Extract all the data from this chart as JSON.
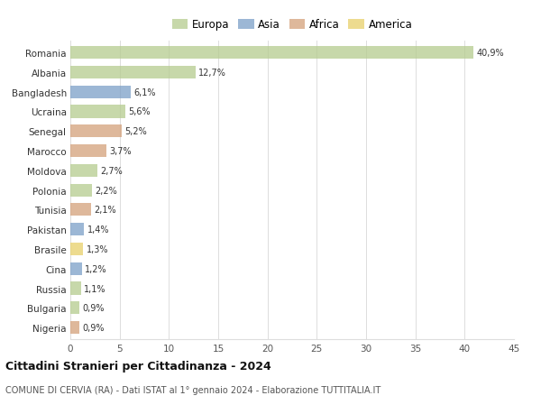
{
  "countries": [
    "Romania",
    "Albania",
    "Bangladesh",
    "Ucraina",
    "Senegal",
    "Marocco",
    "Moldova",
    "Polonia",
    "Tunisia",
    "Pakistan",
    "Brasile",
    "Cina",
    "Russia",
    "Bulgaria",
    "Nigeria"
  ],
  "values": [
    40.9,
    12.7,
    6.1,
    5.6,
    5.2,
    3.7,
    2.7,
    2.2,
    2.1,
    1.4,
    1.3,
    1.2,
    1.1,
    0.9,
    0.9
  ],
  "labels": [
    "40,9%",
    "12,7%",
    "6,1%",
    "5,6%",
    "5,2%",
    "3,7%",
    "2,7%",
    "2,2%",
    "2,1%",
    "1,4%",
    "1,3%",
    "1,2%",
    "1,1%",
    "0,9%",
    "0,9%"
  ],
  "continents": [
    "Europa",
    "Europa",
    "Asia",
    "Europa",
    "Africa",
    "Africa",
    "Europa",
    "Europa",
    "Africa",
    "Asia",
    "America",
    "Asia",
    "Europa",
    "Europa",
    "Africa"
  ],
  "colors": {
    "Europa": "#b5cc8e",
    "Asia": "#7b9fc7",
    "Africa": "#d4a07a",
    "America": "#e8d06a"
  },
  "xlim": [
    0,
    45
  ],
  "xticks": [
    0,
    5,
    10,
    15,
    20,
    25,
    30,
    35,
    40,
    45
  ],
  "title": "Cittadini Stranieri per Cittadinanza - 2024",
  "subtitle": "COMUNE DI CERVIA (RA) - Dati ISTAT al 1° gennaio 2024 - Elaborazione TUTTITALIA.IT",
  "background_color": "#ffffff",
  "grid_color": "#dddddd",
  "bar_height": 0.65
}
